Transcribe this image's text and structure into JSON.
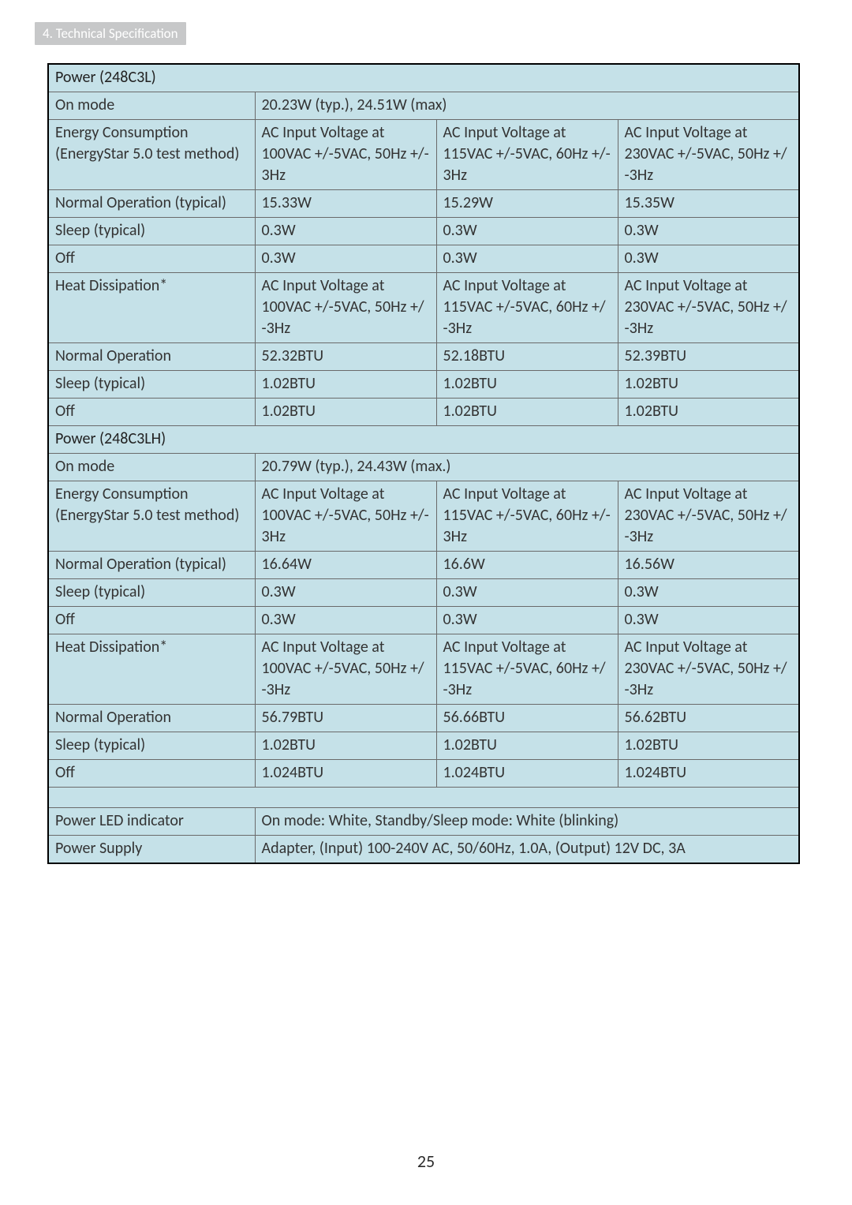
{
  "header": {
    "tab": "4. Technical Specification"
  },
  "page_number": "25",
  "sections": {
    "power_248c3l": {
      "title": "Power (248C3L)",
      "rows": [
        {
          "label": "On mode",
          "span": "20.23W (typ.), 24.51W (max)"
        },
        {
          "label": "Energy Consumption\n(EnergyStar 5.0 test method)",
          "v1": "AC Input Voltage at 100VAC +/-5VAC, 50Hz +/- 3Hz",
          "v2": "AC Input Voltage at 115VAC +/-5VAC, 60Hz +/- 3Hz",
          "v3": "AC Input Voltage at 230VAC +/-5VAC, 50Hz +/ -3Hz"
        },
        {
          "label": "Normal Operation (typical)",
          "v1": "15.33W",
          "v2": "15.29W",
          "v3": "15.35W"
        },
        {
          "label": "Sleep (typical)",
          "v1": "0.3W",
          "v2": "0.3W",
          "v3": "0.3W"
        },
        {
          "label": "Off",
          "v1": "0.3W",
          "v2": "0.3W",
          "v3": "0.3W"
        },
        {
          "label": "Heat Dissipation*",
          "v1": "AC Input Voltage at 100VAC +/-5VAC, 50Hz +/ -3Hz",
          "v2": "AC Input Voltage at 115VAC +/-5VAC, 60Hz +/ -3Hz",
          "v3": "AC Input Voltage at 230VAC +/-5VAC, 50Hz +/ -3Hz"
        },
        {
          "label": "Normal Operation",
          "v1": "52.32BTU",
          "v2": "52.18BTU",
          "v3": "52.39BTU"
        },
        {
          "label": "Sleep (typical)",
          "v1": "1.02BTU",
          "v2": "1.02BTU",
          "v3": "1.02BTU"
        },
        {
          "label": "Off",
          "v1": "1.02BTU",
          "v2": "1.02BTU",
          "v3": "1.02BTU"
        }
      ]
    },
    "power_248c3lh": {
      "title": "Power (248C3LH)",
      "rows": [
        {
          "label": "On mode",
          "span": "20.79W (typ.), 24.43W (max.)"
        },
        {
          "label": "Energy Consumption\n(EnergyStar 5.0 test method)",
          "v1": "AC Input Voltage at 100VAC +/-5VAC, 50Hz +/- 3Hz",
          "v2": "AC Input Voltage at 115VAC +/-5VAC, 60Hz +/- 3Hz",
          "v3": "AC Input Voltage at 230VAC +/-5VAC, 50Hz +/ -3Hz"
        },
        {
          "label": "Normal Operation (typical)",
          "v1": "16.64W",
          "v2": "16.6W",
          "v3": "16.56W"
        },
        {
          "label": "Sleep (typical)",
          "v1": "0.3W",
          "v2": "0.3W",
          "v3": "0.3W"
        },
        {
          "label": "Off",
          "v1": "0.3W",
          "v2": "0.3W",
          "v3": "0.3W"
        },
        {
          "label": "Heat Dissipation*",
          "v1": "AC Input Voltage at 100VAC +/-5VAC, 50Hz +/ -3Hz",
          "v2": "AC Input Voltage at 115VAC +/-5VAC, 60Hz +/ -3Hz",
          "v3": "AC Input Voltage at 230VAC +/-5VAC, 50Hz +/ -3Hz"
        },
        {
          "label": "Normal Operation",
          "v1": "56.79BTU",
          "v2": "56.66BTU",
          "v3": "56.62BTU"
        },
        {
          "label": "Sleep (typical)",
          "v1": "1.02BTU",
          "v2": "1.02BTU",
          "v3": "1.02BTU"
        },
        {
          "label": "Off",
          "v1": "1.024BTU",
          "v2": "1.024BTU",
          "v3": "1.024BTU"
        }
      ]
    },
    "footer": {
      "rows": [
        {
          "label": "Power LED indicator",
          "span": "On mode: White, Standby/Sleep mode: White (blinking)"
        },
        {
          "label": "Power Supply",
          "span": "Adapter, (Input) 100-240V AC, 50/60Hz, 1.0A, (Output) 12V DC, 3A"
        }
      ]
    }
  }
}
